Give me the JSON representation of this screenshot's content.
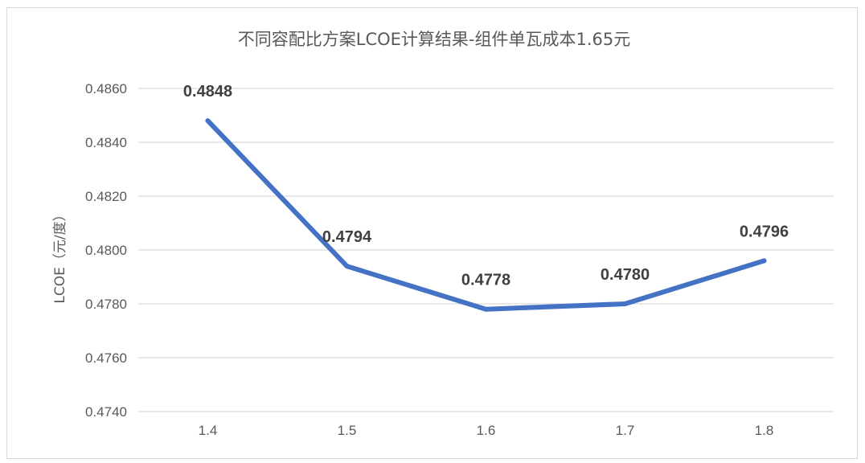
{
  "chart_data": {
    "type": "line",
    "title": "不同容配比方案LCOE计算结果-组件单瓦成本1.65元",
    "xlabel": "",
    "ylabel": "LCOE（元/度）",
    "categories": [
      "1.4",
      "1.5",
      "1.6",
      "1.7",
      "1.8"
    ],
    "series": [
      {
        "values": [
          0.4848,
          0.4794,
          0.4778,
          0.478,
          0.4796
        ],
        "data_labels": [
          "0.4848",
          "0.4794",
          "0.4778",
          "0.4780",
          "0.4796"
        ],
        "color": "#4472c4"
      }
    ],
    "ylim": [
      0.474,
      0.486
    ],
    "yticks": [
      "0.4740",
      "0.4760",
      "0.4780",
      "0.4800",
      "0.4820",
      "0.4840",
      "0.4860"
    ],
    "grid": true,
    "legend": "none"
  }
}
